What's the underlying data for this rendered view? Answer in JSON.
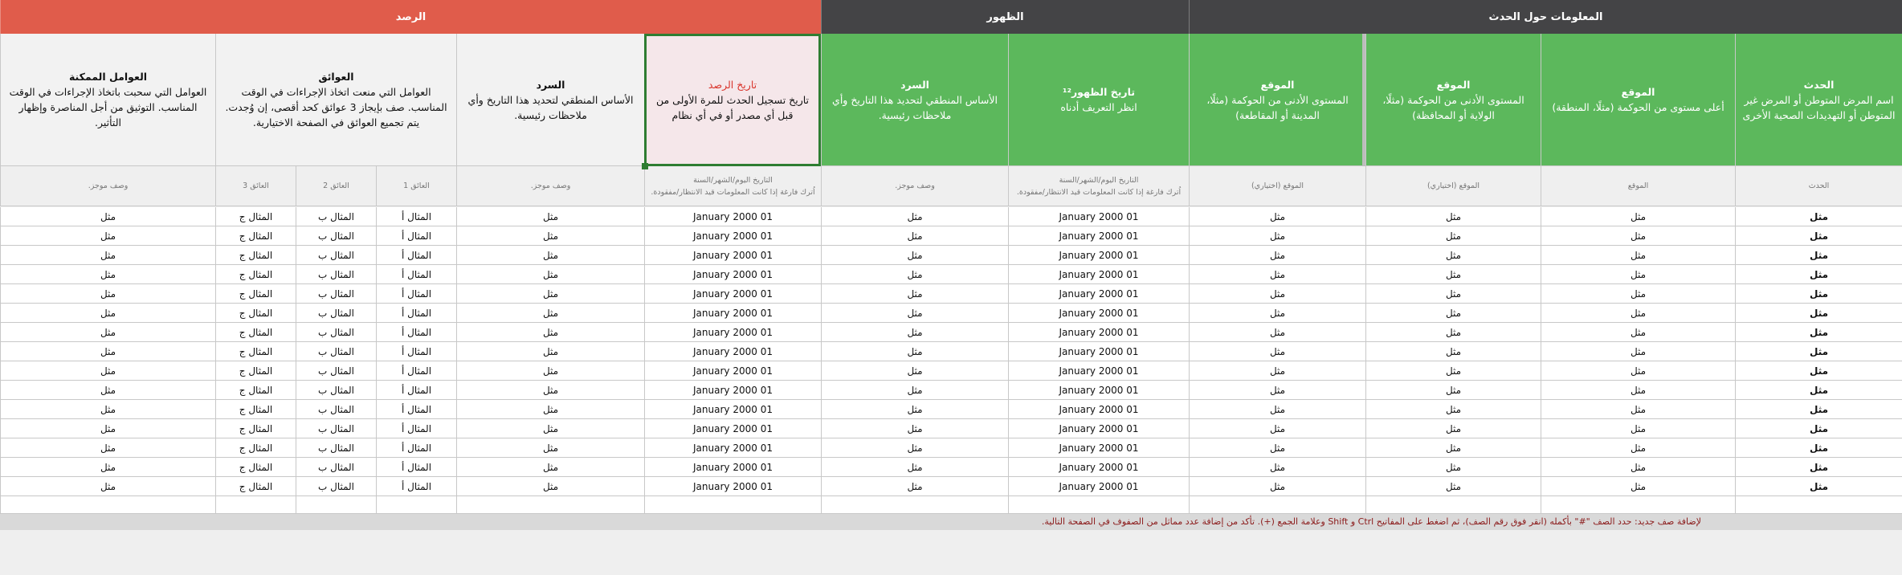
{
  "groups": [
    {
      "label": "المعلومات حول الحدث"
    },
    {
      "label": "الظهور"
    },
    {
      "label": "الرصد"
    }
  ],
  "columns": [
    {
      "title": "الحدث",
      "description": "اسم المرض المتوطن أو المرض غير المتوطن أو التهديدات الصحية الأخرى"
    },
    {
      "title": "الموقع",
      "description": "أعلى مستوى من الحوكمة (مثلًا، المنطقة)"
    },
    {
      "title": "الموقع",
      "description": "المستوى الأدنى من الحوكمة (مثلًا، الولاية أو المحافظة)"
    },
    {
      "title": "الموقع",
      "description": "المستوى الأدنى من الحوكمة (مثلًا، المدينة أو المقاطعة)"
    },
    {
      "title": "تاريخ الظهور¹²",
      "description": "انظر التعريف أدناه"
    },
    {
      "title": "السرد",
      "description": "الأساس المنطقي لتحديد هذا التاريخ وأي ملاحظات رئيسية."
    },
    {
      "title": "تاريخ الرصد",
      "description": "تاريخ تسجيل الحدث للمرة الأولى من قبل أي مصدر أو في أي نظام"
    },
    {
      "title": "السرد",
      "description": "الأساس المنطقي لتحديد هذا التاريخ وأي ملاحظات رئيسية."
    },
    {
      "title": "العوائق",
      "description": "العوامل التي منعت اتخاذ الإجراءات في الوقت المناسب. صف بإيجاز 3 عوائق كحد أقصى، إن وُجدت. يتم تجميع العوائق في الصفحة الاختيارية."
    },
    {
      "title": "العوامل الممكنة",
      "description": "العوامل التي سحبت باتخاذ الإجراءات في الوقت المناسب. التوثيق من أجل المناصرة وإظهار التأثير."
    }
  ],
  "subheaders": [
    [
      "الحدث"
    ],
    [
      "الموقع"
    ],
    [
      "الموقع (اختياري)"
    ],
    [
      "الموقع (اختياري)"
    ],
    [
      "التاريخ اليوم/الشهر/السنة",
      "اُترك فارغة إذا كانت المعلومات قيد الانتظار/مفقودة."
    ],
    [
      "وصف موجز."
    ],
    [
      "التاريخ اليوم/الشهر/السنة",
      "اُترك فارغة إذا كانت المعلومات قيد الانتظار/مفقودة."
    ],
    [
      "وصف موجز."
    ],
    [
      "العائق 1"
    ],
    [
      "العائق 2"
    ],
    [
      "العائق 3"
    ],
    [
      "وصف موجز."
    ]
  ],
  "rows": [
    [
      "مثل",
      "مثل",
      "مثل",
      "مثل",
      "01 January 2000",
      "مثل",
      "01 January 2000",
      "مثل",
      "المثال أ",
      "المثال ب",
      "المثال ج",
      "مثل"
    ],
    [
      "مثل",
      "مثل",
      "مثل",
      "مثل",
      "01 January 2000",
      "مثل",
      "01 January 2000",
      "مثل",
      "المثال أ",
      "المثال ب",
      "المثال ج",
      "مثل"
    ],
    [
      "مثل",
      "مثل",
      "مثل",
      "مثل",
      "01 January 2000",
      "مثل",
      "01 January 2000",
      "مثل",
      "المثال أ",
      "المثال ب",
      "المثال ج",
      "مثل"
    ],
    [
      "مثل",
      "مثل",
      "مثل",
      "مثل",
      "01 January 2000",
      "مثل",
      "01 January 2000",
      "مثل",
      "المثال أ",
      "المثال ب",
      "المثال ج",
      "مثل"
    ],
    [
      "مثل",
      "مثل",
      "مثل",
      "مثل",
      "01 January 2000",
      "مثل",
      "01 January 2000",
      "مثل",
      "المثال أ",
      "المثال ب",
      "المثال ج",
      "مثل"
    ],
    [
      "مثل",
      "مثل",
      "مثل",
      "مثل",
      "01 January 2000",
      "مثل",
      "01 January 2000",
      "مثل",
      "المثال أ",
      "المثال ب",
      "المثال ج",
      "مثل"
    ],
    [
      "مثل",
      "مثل",
      "مثل",
      "مثل",
      "01 January 2000",
      "مثل",
      "01 January 2000",
      "مثل",
      "المثال أ",
      "المثال ب",
      "المثال ج",
      "مثل"
    ],
    [
      "مثل",
      "مثل",
      "مثل",
      "مثل",
      "01 January 2000",
      "مثل",
      "01 January 2000",
      "مثل",
      "المثال أ",
      "المثال ب",
      "المثال ج",
      "مثل"
    ],
    [
      "مثل",
      "مثل",
      "مثل",
      "مثل",
      "01 January 2000",
      "مثل",
      "01 January 2000",
      "مثل",
      "المثال أ",
      "المثال ب",
      "المثال ج",
      "مثل"
    ],
    [
      "مثل",
      "مثل",
      "مثل",
      "مثل",
      "01 January 2000",
      "مثل",
      "01 January 2000",
      "مثل",
      "المثال أ",
      "المثال ب",
      "المثال ج",
      "مثل"
    ],
    [
      "مثل",
      "مثل",
      "مثل",
      "مثل",
      "01 January 2000",
      "مثل",
      "01 January 2000",
      "مثل",
      "المثال أ",
      "المثال ب",
      "المثال ج",
      "مثل"
    ],
    [
      "مثل",
      "مثل",
      "مثل",
      "مثل",
      "01 January 2000",
      "مثل",
      "01 January 2000",
      "مثل",
      "المثال أ",
      "المثال ب",
      "المثال ج",
      "مثل"
    ],
    [
      "مثل",
      "مثل",
      "مثل",
      "مثل",
      "01 January 2000",
      "مثل",
      "01 January 2000",
      "مثل",
      "المثال أ",
      "المثال ب",
      "المثال ج",
      "مثل"
    ],
    [
      "مثل",
      "مثل",
      "مثل",
      "مثل",
      "01 January 2000",
      "مثل",
      "01 January 2000",
      "مثل",
      "المثال أ",
      "المثال ب",
      "المثال ج",
      "مثل"
    ],
    [
      "مثل",
      "مثل",
      "مثل",
      "مثل",
      "01 January 2000",
      "مثل",
      "01 January 2000",
      "مثل",
      "المثال أ",
      "المثال ب",
      "المثال ج",
      "مثل"
    ]
  ],
  "note": "لإضافة صف جديد: حدد الصف \"#\" بأكمله (انقر فوق رقم الصف)، ثم اضغط على المفاتيح Ctrl و Shift وعلامة الجمع (+). تأكد من إضافة عدد مماثل من الصفوف في الصفحة التالية."
}
